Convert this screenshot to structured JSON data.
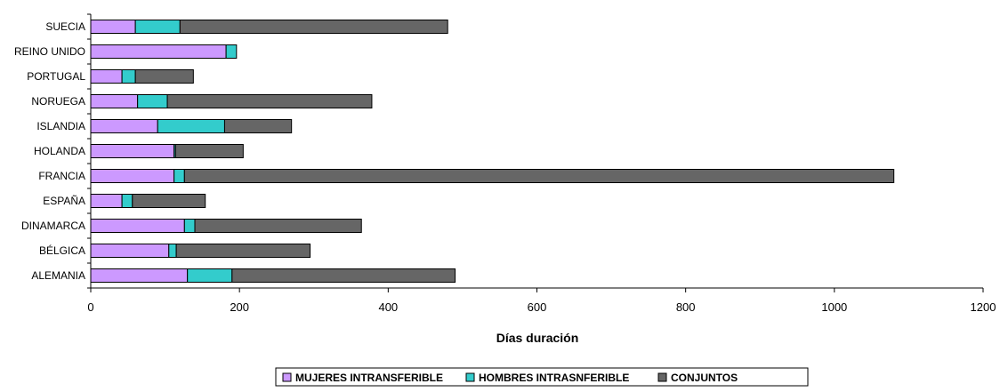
{
  "chart_data": {
    "type": "bar",
    "orientation": "horizontal",
    "stacked": true,
    "title": "",
    "xlabel": "Días duración",
    "ylabel": "",
    "xlim": [
      0,
      1200
    ],
    "x_ticks": [
      0,
      200,
      400,
      600,
      800,
      1000,
      1200
    ],
    "grid": false,
    "legend_position": "bottom",
    "categories": [
      "SUECIA",
      "REINO UNIDO",
      "PORTUGAL",
      "NORUEGA",
      "ISLANDIA",
      "HOLANDA",
      "FRANCIA",
      "ESPAÑA",
      "DINAMARCA",
      "BÉLGICA",
      "ALEMANIA"
    ],
    "series": [
      {
        "name": "MUJERES INTRANSFERIBLE",
        "color": "#cc99ff",
        "values": [
          60,
          182,
          42,
          63,
          90,
          112,
          112,
          42,
          126,
          105,
          130
        ]
      },
      {
        "name": "HOMBRES INTRASNFERIBLE",
        "color": "#33cccc",
        "values": [
          60,
          14,
          18,
          40,
          90,
          2,
          14,
          14,
          14,
          10,
          60
        ]
      },
      {
        "name": "CONJUNTOS",
        "color": "#666666",
        "values": [
          360,
          0,
          78,
          275,
          90,
          91,
          954,
          98,
          224,
          180,
          300
        ]
      }
    ]
  }
}
